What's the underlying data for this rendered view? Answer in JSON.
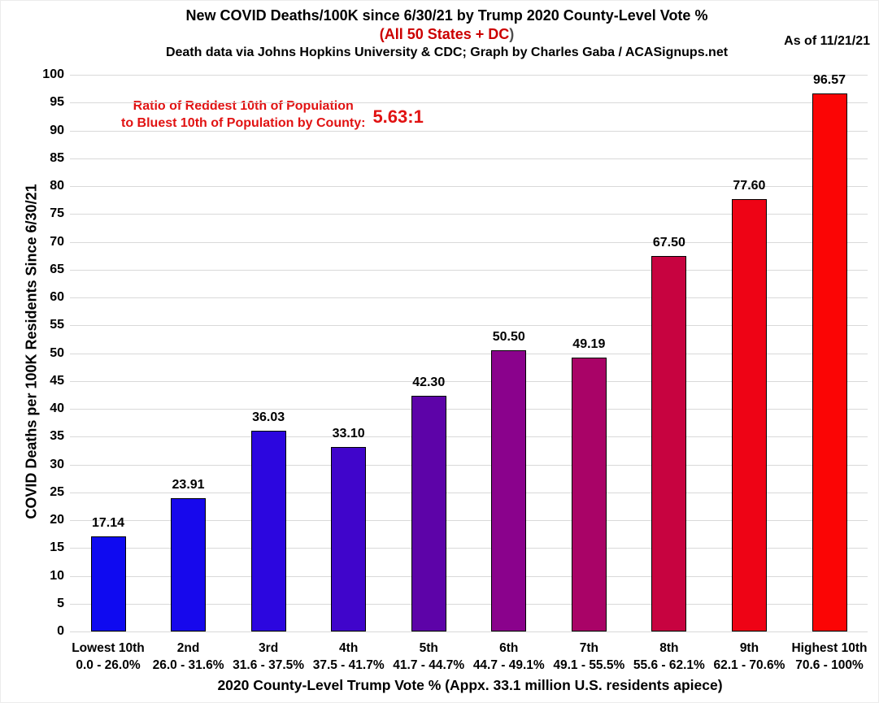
{
  "header": {
    "title": "New COVID Deaths/100K since 6/30/21 by Trump 2020 County-Level Vote %",
    "subtitle": "(All 50 States + DC",
    "subtitle_close_paren": ")",
    "credit": "Death data via Johns Hopkins University & CDC; Graph by Charles Gaba / ACASignups.net",
    "as_of": "As of 11/21/21"
  },
  "annotation": {
    "line1": "Ratio of Reddest 10th of Population",
    "line2": "to Bluest 10th of Population by County:",
    "ratio_value": "5.63:1"
  },
  "chart_data": {
    "type": "bar",
    "title": "New COVID Deaths/100K since 6/30/21 by Trump 2020 County-Level Vote %",
    "subtitle": "(All 50 States + DC)",
    "xlabel": "2020 County-Level Trump Vote % (Appx. 33.1 million U.S. residents apiece)",
    "ylabel": "COVID Deaths per 100K Residents Since 6/30/21",
    "ylim": [
      0,
      100
    ],
    "ytick_step": 5,
    "grid": true,
    "legend": "none",
    "categories": [
      "Lowest 10th",
      "2nd",
      "3rd",
      "4th",
      "5th",
      "6th",
      "7th",
      "8th",
      "9th",
      "Highest 10th"
    ],
    "category_ranges": [
      "0.0 - 26.0%",
      "26.0 - 31.6%",
      "31.6 - 37.5%",
      "37.5 - 41.7%",
      "41.7 - 44.7%",
      "44.7 - 49.1%",
      "49.1 - 55.5%",
      "55.6 - 62.1%",
      "62.1 - 70.6%",
      "70.6 - 100%"
    ],
    "values": [
      17.14,
      23.91,
      36.03,
      33.1,
      42.3,
      50.5,
      49.19,
      67.5,
      77.6,
      96.57
    ],
    "value_labels": [
      "17.14",
      "23.91",
      "36.03",
      "33.10",
      "42.30",
      "50.50",
      "49.19",
      "67.50",
      "77.60",
      "96.57"
    ],
    "bar_colors": [
      "#0f0af0",
      "#1708ec",
      "#2c06df",
      "#4005cb",
      "#5d03a8",
      "#8a028c",
      "#a90367",
      "#c70340",
      "#ee0315",
      "#fb0505"
    ]
  },
  "colors": {
    "accent_red": "#cc0000",
    "annotation_red": "#e11212",
    "grid": "#d9d9d9",
    "paren_gray": "#4d4d4d",
    "text": "#000000"
  }
}
